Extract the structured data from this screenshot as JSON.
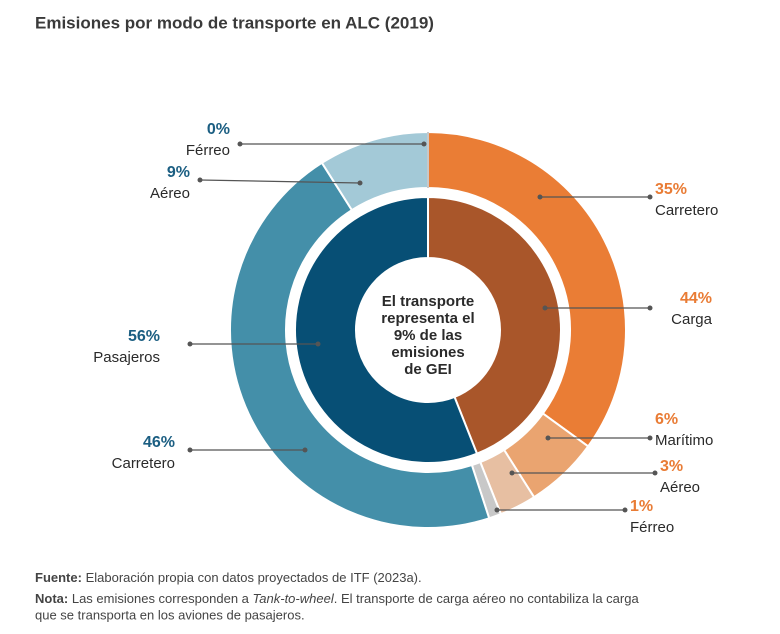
{
  "chart_data": {
    "type": "nested-donut",
    "title": "Emisiones por modo de transporte en ALC (2019)",
    "center_text": [
      "El transporte",
      "representa el",
      "9% de las",
      "emisiones",
      "de GEI"
    ],
    "rings": [
      {
        "categories": [
          "Carga",
          "Pasajeros"
        ],
        "values": [
          44,
          56
        ],
        "value_labels": [
          "44%",
          "56%"
        ],
        "colors": [
          "#a9562a",
          "#074f75"
        ]
      },
      {
        "categories": [
          "Carretero",
          "Marítimo",
          "Aéreo",
          "Férreo",
          "Carretero",
          "Aéreo",
          "Férreo"
        ],
        "values": [
          35,
          6,
          3,
          1,
          46,
          9,
          0
        ],
        "value_labels": [
          "35%",
          "6%",
          "3%",
          "1%",
          "46%",
          "9%",
          "0%"
        ],
        "colors": [
          "#ea7d35",
          "#eaa470",
          "#e7bfa2",
          "#c8c8c8",
          "#448fa9",
          "#a3c9d7",
          "#c8c8c8"
        ]
      }
    ]
  },
  "notes": {
    "source_label": "Fuente:",
    "source_text": "Elaboración propia con datos proyectados de ITF (2023a).",
    "note_label": "Nota:",
    "note_text_1": "Las emisiones corresponden a",
    "note_italic": "Tank-to-wheel",
    "note_text_2": ". El transporte de carga aéreo no contabiliza la carga",
    "note_text_3": "que se transporta en los aviones de pasajeros."
  }
}
